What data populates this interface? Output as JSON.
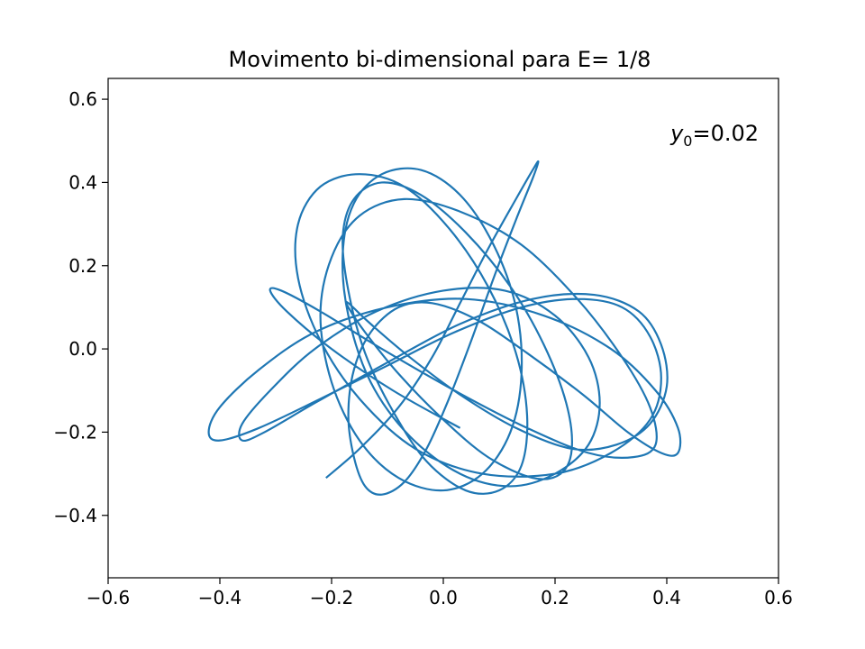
{
  "chart_data": {
    "type": "line",
    "title": "Movimento bi-dimensional para E= 1/8",
    "xlabel": "",
    "ylabel": "",
    "xlim": [
      -0.6,
      0.6
    ],
    "ylim": [
      -0.55,
      0.65
    ],
    "x_ticks": [
      -0.6,
      -0.4,
      -0.2,
      0.0,
      0.2,
      0.4,
      0.6
    ],
    "x_tick_labels": [
      "−0.6",
      "−0.4",
      "−0.2",
      "0.0",
      "0.2",
      "0.4",
      "0.6"
    ],
    "y_ticks": [
      -0.4,
      -0.2,
      0.0,
      0.2,
      0.4,
      0.6
    ],
    "y_tick_labels": [
      "−0.4",
      "−0.2",
      "0.0",
      "0.2",
      "0.4",
      "0.6"
    ],
    "grid": false,
    "annotation": {
      "var": "y",
      "sub": "0",
      "value": "=0.02"
    },
    "series": [
      {
        "color": "#1f77b4",
        "x": [
          -0.21,
          -0.15,
          -0.08,
          -0.02,
          0.03,
          0.08,
          0.13,
          0.16,
          0.17,
          0.16,
          0.13,
          0.09,
          0.05,
          0.01,
          -0.03,
          -0.07,
          -0.11,
          -0.14,
          -0.16,
          -0.17,
          -0.16,
          -0.13,
          -0.08,
          -0.02,
          0.06,
          0.15,
          0.25,
          0.33,
          0.39,
          0.42,
          0.42,
          0.38,
          0.3,
          0.18,
          0.04,
          -0.1,
          -0.23,
          -0.33,
          -0.4,
          -0.42,
          -0.4,
          -0.33,
          -0.22,
          -0.1,
          0.02,
          0.14,
          0.24,
          0.32,
          0.37,
          0.39,
          0.37,
          0.3,
          0.2,
          0.07,
          -0.05,
          -0.15,
          -0.22,
          -0.26,
          -0.26,
          -0.22,
          -0.15,
          -0.07,
          0.01,
          0.08,
          0.13,
          0.15,
          0.14,
          0.1,
          0.04,
          -0.03,
          -0.09,
          -0.14,
          -0.17,
          -0.18,
          -0.16,
          -0.11,
          -0.04,
          0.04,
          0.12,
          0.18,
          0.22,
          0.23,
          0.21,
          0.16,
          0.08,
          0.0,
          -0.08,
          -0.14,
          -0.17,
          -0.17,
          -0.13,
          -0.06,
          0.03,
          0.13,
          0.23,
          0.31,
          0.37,
          0.4,
          0.39,
          0.35,
          0.27,
          0.16,
          0.03,
          -0.11,
          -0.23,
          -0.32,
          -0.36,
          -0.36,
          -0.31,
          -0.23,
          -0.12,
          0.0,
          0.11,
          0.2,
          0.26,
          0.28,
          0.26,
          0.2,
          0.12,
          0.03,
          -0.06,
          -0.13,
          -0.17,
          -0.18,
          -0.16,
          -0.11,
          -0.04,
          0.03,
          0.09,
          0.13,
          0.14,
          0.12,
          0.07,
          0.0,
          -0.08,
          -0.15,
          -0.2,
          -0.22,
          -0.2,
          -0.15,
          -0.07,
          0.03,
          0.14,
          0.24,
          0.32,
          0.37,
          0.38,
          0.34,
          0.26,
          0.15,
          0.02,
          -0.11,
          -0.22,
          -0.29,
          -0.31,
          -0.28,
          -0.2,
          -0.09,
          0.03
        ],
        "y": [
          -0.31,
          -0.24,
          -0.14,
          -0.02,
          0.11,
          0.24,
          0.36,
          0.43,
          0.45,
          0.41,
          0.31,
          0.17,
          0.02,
          -0.12,
          -0.24,
          -0.32,
          -0.35,
          -0.33,
          -0.26,
          -0.16,
          -0.05,
          0.04,
          0.1,
          0.11,
          0.07,
          -0.01,
          -0.11,
          -0.2,
          -0.25,
          -0.25,
          -0.19,
          -0.1,
          0.0,
          0.08,
          0.12,
          0.1,
          0.04,
          -0.05,
          -0.14,
          -0.2,
          -0.22,
          -0.19,
          -0.12,
          -0.04,
          0.04,
          0.1,
          0.12,
          0.1,
          0.03,
          -0.07,
          -0.17,
          -0.25,
          -0.3,
          -0.3,
          -0.24,
          -0.12,
          0.02,
          0.17,
          0.3,
          0.39,
          0.42,
          0.39,
          0.29,
          0.15,
          -0.01,
          -0.16,
          -0.28,
          -0.34,
          -0.34,
          -0.27,
          -0.15,
          -0.01,
          0.14,
          0.27,
          0.36,
          0.4,
          0.37,
          0.28,
          0.15,
          0.01,
          -0.13,
          -0.24,
          -0.3,
          -0.31,
          -0.26,
          -0.17,
          -0.06,
          0.04,
          0.1,
          0.11,
          0.06,
          -0.02,
          -0.11,
          -0.19,
          -0.24,
          -0.23,
          -0.18,
          -0.09,
          0.01,
          0.09,
          0.13,
          0.12,
          0.06,
          -0.04,
          -0.13,
          -0.2,
          -0.22,
          -0.18,
          -0.1,
          0.0,
          0.09,
          0.14,
          0.14,
          0.08,
          -0.02,
          -0.13,
          -0.23,
          -0.3,
          -0.33,
          -0.3,
          -0.21,
          -0.08,
          0.08,
          0.23,
          0.35,
          0.42,
          0.43,
          0.37,
          0.25,
          0.1,
          -0.06,
          -0.2,
          -0.3,
          -0.34,
          -0.31,
          -0.22,
          -0.08,
          0.08,
          0.22,
          0.32,
          0.36,
          0.33,
          0.25,
          0.12,
          -0.02,
          -0.14,
          -0.23,
          -0.26,
          -0.25,
          -0.19,
          -0.1,
          0.0,
          0.09,
          0.14,
          0.14,
          0.09,
          0.0,
          -0.1,
          -0.19
        ]
      }
    ]
  }
}
